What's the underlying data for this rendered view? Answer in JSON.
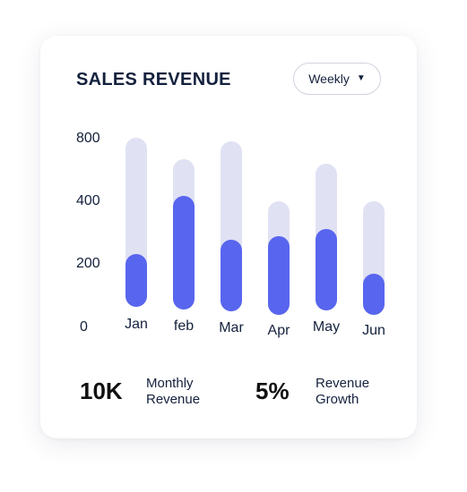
{
  "card": {
    "title": "SALES REVENUE",
    "dropdown": {
      "selected": "Weekly",
      "icon": "caret-down-icon"
    }
  },
  "chart_data": {
    "type": "bar",
    "categories": [
      "Jan",
      "feb",
      "Mar",
      "Apr",
      "May",
      "Jun"
    ],
    "y_ticks": [
      "800",
      "400",
      "200",
      "0"
    ],
    "colors": {
      "track": "#e0e1f3",
      "fill": "#5865ee"
    }
  },
  "stats": {
    "monthly": {
      "value": "10K",
      "label_line1": "Monthly",
      "label_line2": "Revenue"
    },
    "growth": {
      "value": "5%",
      "label_line1": "Revenue",
      "label_line2": "Growth"
    }
  }
}
